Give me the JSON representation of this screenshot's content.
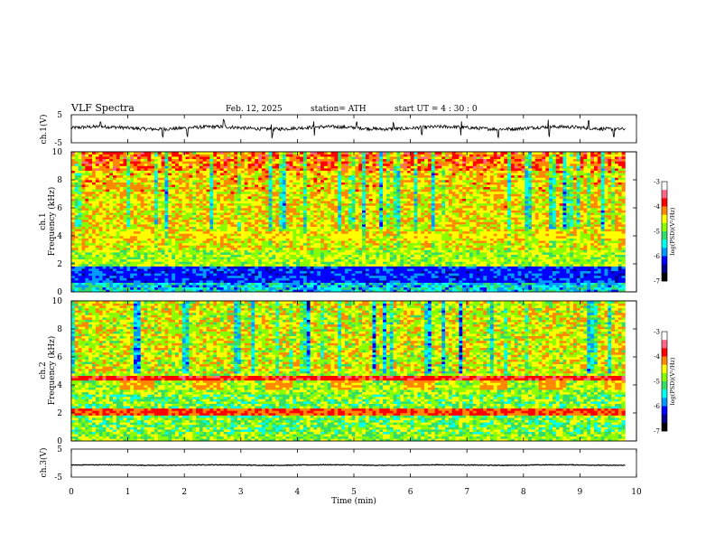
{
  "header": {
    "title": "VLF  Spectra",
    "date": "Feb. 12, 2025",
    "station": "station= ATH",
    "start": "start  UT  =   4  : 30 : 0"
  },
  "chart_data": [
    {
      "type": "line",
      "name": "ch1-waveform",
      "ylabel": "ch.1(V)",
      "ylim": [
        -5,
        5
      ],
      "yticks": [
        "5",
        "-5"
      ],
      "x_range_min": [
        0,
        9.8
      ],
      "mean": 0.3,
      "spike_times_min": [
        0.52,
        1.62,
        2.05,
        2.7,
        3.55,
        4.3,
        5.05,
        5.7,
        6.2,
        6.9,
        7.55,
        8.45,
        9.15,
        9.6
      ]
    },
    {
      "type": "heatmap",
      "name": "ch1-spectrogram",
      "ylabel_top": "ch.1",
      "ylabel": "Frequency  (kHz)",
      "ylim": [
        0,
        10
      ],
      "yticks": [
        "0",
        "2",
        "4",
        "6",
        "8",
        "10"
      ],
      "x_range_min": [
        0,
        9.8
      ],
      "color_scale": {
        "label": "log(PSD)(V²/Hz)",
        "range": [
          -7,
          -3
        ],
        "ticks": [
          "-3",
          "-4",
          "-5",
          "-6",
          "-7"
        ],
        "colors": [
          "#000000",
          "#00008b",
          "#0000ff",
          "#0099ff",
          "#00ffee",
          "#33dd66",
          "#88ff00",
          "#ffff00",
          "#ff8800",
          "#ff0000",
          "#ff6688",
          "#ffffff"
        ]
      },
      "band_4khz_segments_min": [
        [
          0.85,
          1.45
        ],
        [
          2.15,
          2.7
        ],
        [
          3.4,
          3.95
        ],
        [
          4.6,
          5.15
        ],
        [
          5.9,
          6.45
        ],
        [
          7.2,
          7.7
        ],
        [
          8.25,
          8.75
        ],
        [
          9.45,
          9.8
        ]
      ]
    },
    {
      "type": "heatmap",
      "name": "ch2-spectrogram",
      "ylabel_top": "ch.2",
      "ylabel": "Frequency  (kHz)",
      "ylim": [
        0,
        10
      ],
      "yticks": [
        "0",
        "2",
        "4",
        "6",
        "8",
        "10"
      ],
      "x_range_min": [
        0,
        9.8
      ],
      "color_scale": {
        "label": "log(PSD)(V²/Hz)",
        "range": [
          -7,
          -3
        ],
        "ticks": [
          "-3",
          "-4",
          "-5",
          "-6",
          "-7"
        ],
        "colors": [
          "#000000",
          "#00008b",
          "#0000ff",
          "#0099ff",
          "#00ffee",
          "#33dd66",
          "#88ff00",
          "#ffff00",
          "#ff8800",
          "#ff0000",
          "#ff6688",
          "#ffffff"
        ]
      },
      "band_4khz_segments_min": [
        [
          0.85,
          1.45
        ],
        [
          2.15,
          2.7
        ],
        [
          3.4,
          3.95
        ],
        [
          4.6,
          5.15
        ],
        [
          5.9,
          6.45
        ],
        [
          7.2,
          7.7
        ],
        [
          8.25,
          8.75
        ],
        [
          9.45,
          9.8
        ]
      ]
    },
    {
      "type": "line",
      "name": "ch3-waveform",
      "ylabel": "ch.3(V)",
      "ylim": [
        -5,
        5
      ],
      "yticks": [
        "5",
        "-5"
      ],
      "x_range_min": [
        0,
        9.8
      ],
      "mean": -0.7,
      "spike_times_min": []
    }
  ],
  "x_axis": {
    "label": "Time  (min)",
    "range": [
      0,
      10
    ],
    "ticks": [
      "0",
      "1",
      "2",
      "3",
      "4",
      "5",
      "6",
      "7",
      "8",
      "9",
      "10"
    ]
  }
}
